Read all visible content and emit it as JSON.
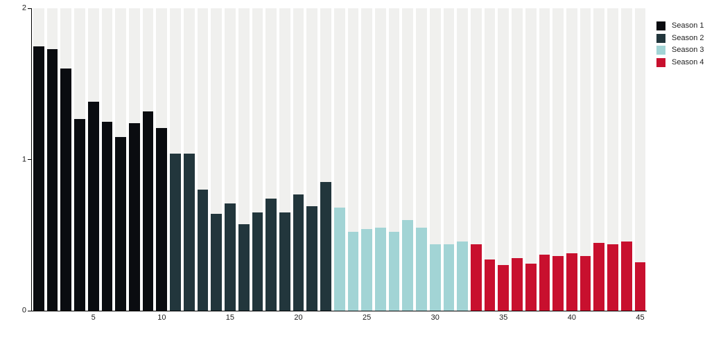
{
  "chart_data": {
    "type": "bar",
    "title": "",
    "xlabel": "",
    "ylabel": "",
    "ylim": [
      0,
      2
    ],
    "yticks": [
      0,
      1,
      2
    ],
    "xticks": [
      5,
      10,
      15,
      20,
      25,
      30,
      35,
      40,
      45
    ],
    "grid": false,
    "legend_position": "top-right",
    "background_track_color": "#f0f0ee",
    "axis_color": "#000000",
    "series": [
      {
        "name": "Season 1",
        "color": "#0a0c10",
        "episodes": [
          1,
          2,
          3,
          4,
          5,
          6,
          7,
          8,
          9,
          10
        ],
        "values": [
          1.75,
          1.73,
          1.6,
          1.27,
          1.38,
          1.25,
          1.15,
          1.24,
          1.32,
          1.21
        ]
      },
      {
        "name": "Season 2",
        "color": "#22363c",
        "episodes": [
          11,
          12,
          13,
          14,
          15,
          16,
          17,
          18,
          19,
          20,
          21,
          22
        ],
        "values": [
          1.04,
          1.04,
          0.8,
          0.64,
          0.71,
          0.57,
          0.65,
          0.74,
          0.65,
          0.77,
          0.69,
          0.85
        ]
      },
      {
        "name": "Season 3",
        "color": "#a2d4d5",
        "episodes": [
          23,
          24,
          25,
          26,
          27,
          28,
          29,
          30,
          31,
          32
        ],
        "values": [
          0.68,
          0.52,
          0.54,
          0.55,
          0.52,
          0.6,
          0.55,
          0.44,
          0.44,
          0.46
        ]
      },
      {
        "name": "Season 4",
        "color": "#c8102e",
        "episodes": [
          33,
          34,
          35,
          36,
          37,
          38,
          39,
          40,
          41,
          42,
          43,
          44,
          45
        ],
        "values": [
          0.44,
          0.34,
          0.3,
          0.35,
          0.31,
          0.37,
          0.36,
          0.38,
          0.36,
          0.45,
          0.44,
          0.46,
          0.32
        ]
      }
    ],
    "bars": [
      {
        "episode": 1,
        "season": 1,
        "value": 1.75
      },
      {
        "episode": 2,
        "season": 1,
        "value": 1.73
      },
      {
        "episode": 3,
        "season": 1,
        "value": 1.6
      },
      {
        "episode": 4,
        "season": 1,
        "value": 1.27
      },
      {
        "episode": 5,
        "season": 1,
        "value": 1.38
      },
      {
        "episode": 6,
        "season": 1,
        "value": 1.25
      },
      {
        "episode": 7,
        "season": 1,
        "value": 1.15
      },
      {
        "episode": 8,
        "season": 1,
        "value": 1.24
      },
      {
        "episode": 9,
        "season": 1,
        "value": 1.32
      },
      {
        "episode": 10,
        "season": 1,
        "value": 1.21
      },
      {
        "episode": 11,
        "season": 2,
        "value": 1.04
      },
      {
        "episode": 12,
        "season": 2,
        "value": 1.04
      },
      {
        "episode": 13,
        "season": 2,
        "value": 0.8
      },
      {
        "episode": 14,
        "season": 2,
        "value": 0.64
      },
      {
        "episode": 15,
        "season": 2,
        "value": 0.71
      },
      {
        "episode": 16,
        "season": 2,
        "value": 0.57
      },
      {
        "episode": 17,
        "season": 2,
        "value": 0.65
      },
      {
        "episode": 18,
        "season": 2,
        "value": 0.74
      },
      {
        "episode": 19,
        "season": 2,
        "value": 0.65
      },
      {
        "episode": 20,
        "season": 2,
        "value": 0.77
      },
      {
        "episode": 21,
        "season": 2,
        "value": 0.69
      },
      {
        "episode": 22,
        "season": 2,
        "value": 0.85
      },
      {
        "episode": 23,
        "season": 3,
        "value": 0.68
      },
      {
        "episode": 24,
        "season": 3,
        "value": 0.52
      },
      {
        "episode": 25,
        "season": 3,
        "value": 0.54
      },
      {
        "episode": 26,
        "season": 3,
        "value": 0.55
      },
      {
        "episode": 27,
        "season": 3,
        "value": 0.52
      },
      {
        "episode": 28,
        "season": 3,
        "value": 0.6
      },
      {
        "episode": 29,
        "season": 3,
        "value": 0.55
      },
      {
        "episode": 30,
        "season": 3,
        "value": 0.44
      },
      {
        "episode": 31,
        "season": 3,
        "value": 0.44
      },
      {
        "episode": 32,
        "season": 3,
        "value": 0.46
      },
      {
        "episode": 33,
        "season": 4,
        "value": 0.44
      },
      {
        "episode": 34,
        "season": 4,
        "value": 0.34
      },
      {
        "episode": 35,
        "season": 4,
        "value": 0.3
      },
      {
        "episode": 36,
        "season": 4,
        "value": 0.35
      },
      {
        "episode": 37,
        "season": 4,
        "value": 0.31
      },
      {
        "episode": 38,
        "season": 4,
        "value": 0.37
      },
      {
        "episode": 39,
        "season": 4,
        "value": 0.36
      },
      {
        "episode": 40,
        "season": 4,
        "value": 0.38
      },
      {
        "episode": 41,
        "season": 4,
        "value": 0.36
      },
      {
        "episode": 42,
        "season": 4,
        "value": 0.45
      },
      {
        "episode": 43,
        "season": 4,
        "value": 0.44
      },
      {
        "episode": 44,
        "season": 4,
        "value": 0.46
      },
      {
        "episode": 45,
        "season": 4,
        "value": 0.32
      }
    ]
  },
  "legend": {
    "items": [
      {
        "label": "Season 1",
        "color": "#0a0c10"
      },
      {
        "label": "Season 2",
        "color": "#22363c"
      },
      {
        "label": "Season 3",
        "color": "#a2d4d5"
      },
      {
        "label": "Season 4",
        "color": "#c8102e"
      }
    ]
  },
  "axes": {
    "y_labels": [
      "0",
      "1",
      "2"
    ],
    "x_labels": [
      "5",
      "10",
      "15",
      "20",
      "25",
      "30",
      "35",
      "40",
      "45"
    ]
  }
}
